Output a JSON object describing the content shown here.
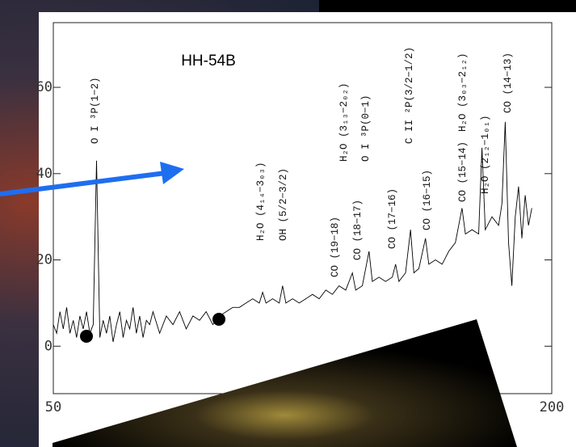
{
  "chart_data": {
    "type": "line",
    "title": "HH-54B",
    "xlim": [
      50,
      200
    ],
    "ylim": [
      -11,
      75
    ],
    "xticks": [
      50,
      200
    ],
    "yticks": [
      0,
      20,
      40,
      60
    ],
    "annotations": [
      "O I ³P(1−2)",
      "H₂O (4₁₄−3₀₃)",
      "OH (5/2−3/2)",
      "CO (19−18)",
      "H₂O (3₁₃−2₀₂)",
      "CO (18−17)",
      "O I ³P(0−1)",
      "CO (17−16)",
      "C II ²P(3/2−1/2)",
      "CO (16−15)",
      "CO (15−14)",
      "H₂O (3₀₃−2₁₂)",
      "H₂O (2₁₂−1₀₁)",
      "CO (14−13)"
    ],
    "series": [
      {
        "color": "#000000",
        "x": [
          50,
          51,
          52,
          53,
          54,
          55,
          56,
          57,
          58,
          59,
          60,
          61,
          62,
          63,
          64,
          65,
          66,
          67,
          68,
          69,
          70,
          71,
          72,
          73,
          74,
          75,
          76,
          77,
          78,
          79,
          80,
          82,
          84,
          86,
          88,
          90,
          92,
          94,
          96,
          98,
          100,
          102,
          104,
          106,
          108,
          110,
          112,
          113,
          114,
          116,
          118,
          119,
          120,
          122,
          124,
          126,
          128,
          130,
          132,
          134,
          136,
          138,
          140,
          141,
          143,
          145,
          146,
          148,
          150,
          152,
          153,
          154,
          156,
          157.5,
          158.5,
          160,
          162,
          163,
          165,
          167,
          169,
          171,
          173,
          174,
          176,
          178,
          179,
          180,
          182,
          184,
          185,
          186,
          187,
          188,
          189,
          190,
          191,
          192,
          193,
          194
        ],
        "values": [
          5,
          3,
          8,
          4,
          9,
          3,
          6,
          2,
          7,
          4,
          8,
          3,
          5,
          43,
          2,
          6,
          3,
          7,
          1,
          5,
          8,
          2,
          6,
          4,
          9,
          3,
          7,
          2,
          6,
          5,
          8,
          3,
          7,
          5,
          8,
          4,
          7,
          6,
          8,
          5,
          7,
          8,
          9,
          9,
          10,
          11,
          10,
          12.5,
          10,
          11,
          10,
          14,
          10,
          11,
          10,
          11,
          12,
          11,
          13,
          12,
          14,
          13,
          17,
          13,
          14,
          22,
          15,
          16,
          15,
          16,
          19,
          15,
          17,
          27,
          17,
          18,
          25,
          19,
          20,
          19,
          22,
          24,
          32,
          26,
          27,
          26,
          46,
          27,
          30,
          28,
          33,
          52,
          24,
          14,
          30,
          37,
          25,
          35,
          28,
          32
        ]
      }
    ]
  }
}
